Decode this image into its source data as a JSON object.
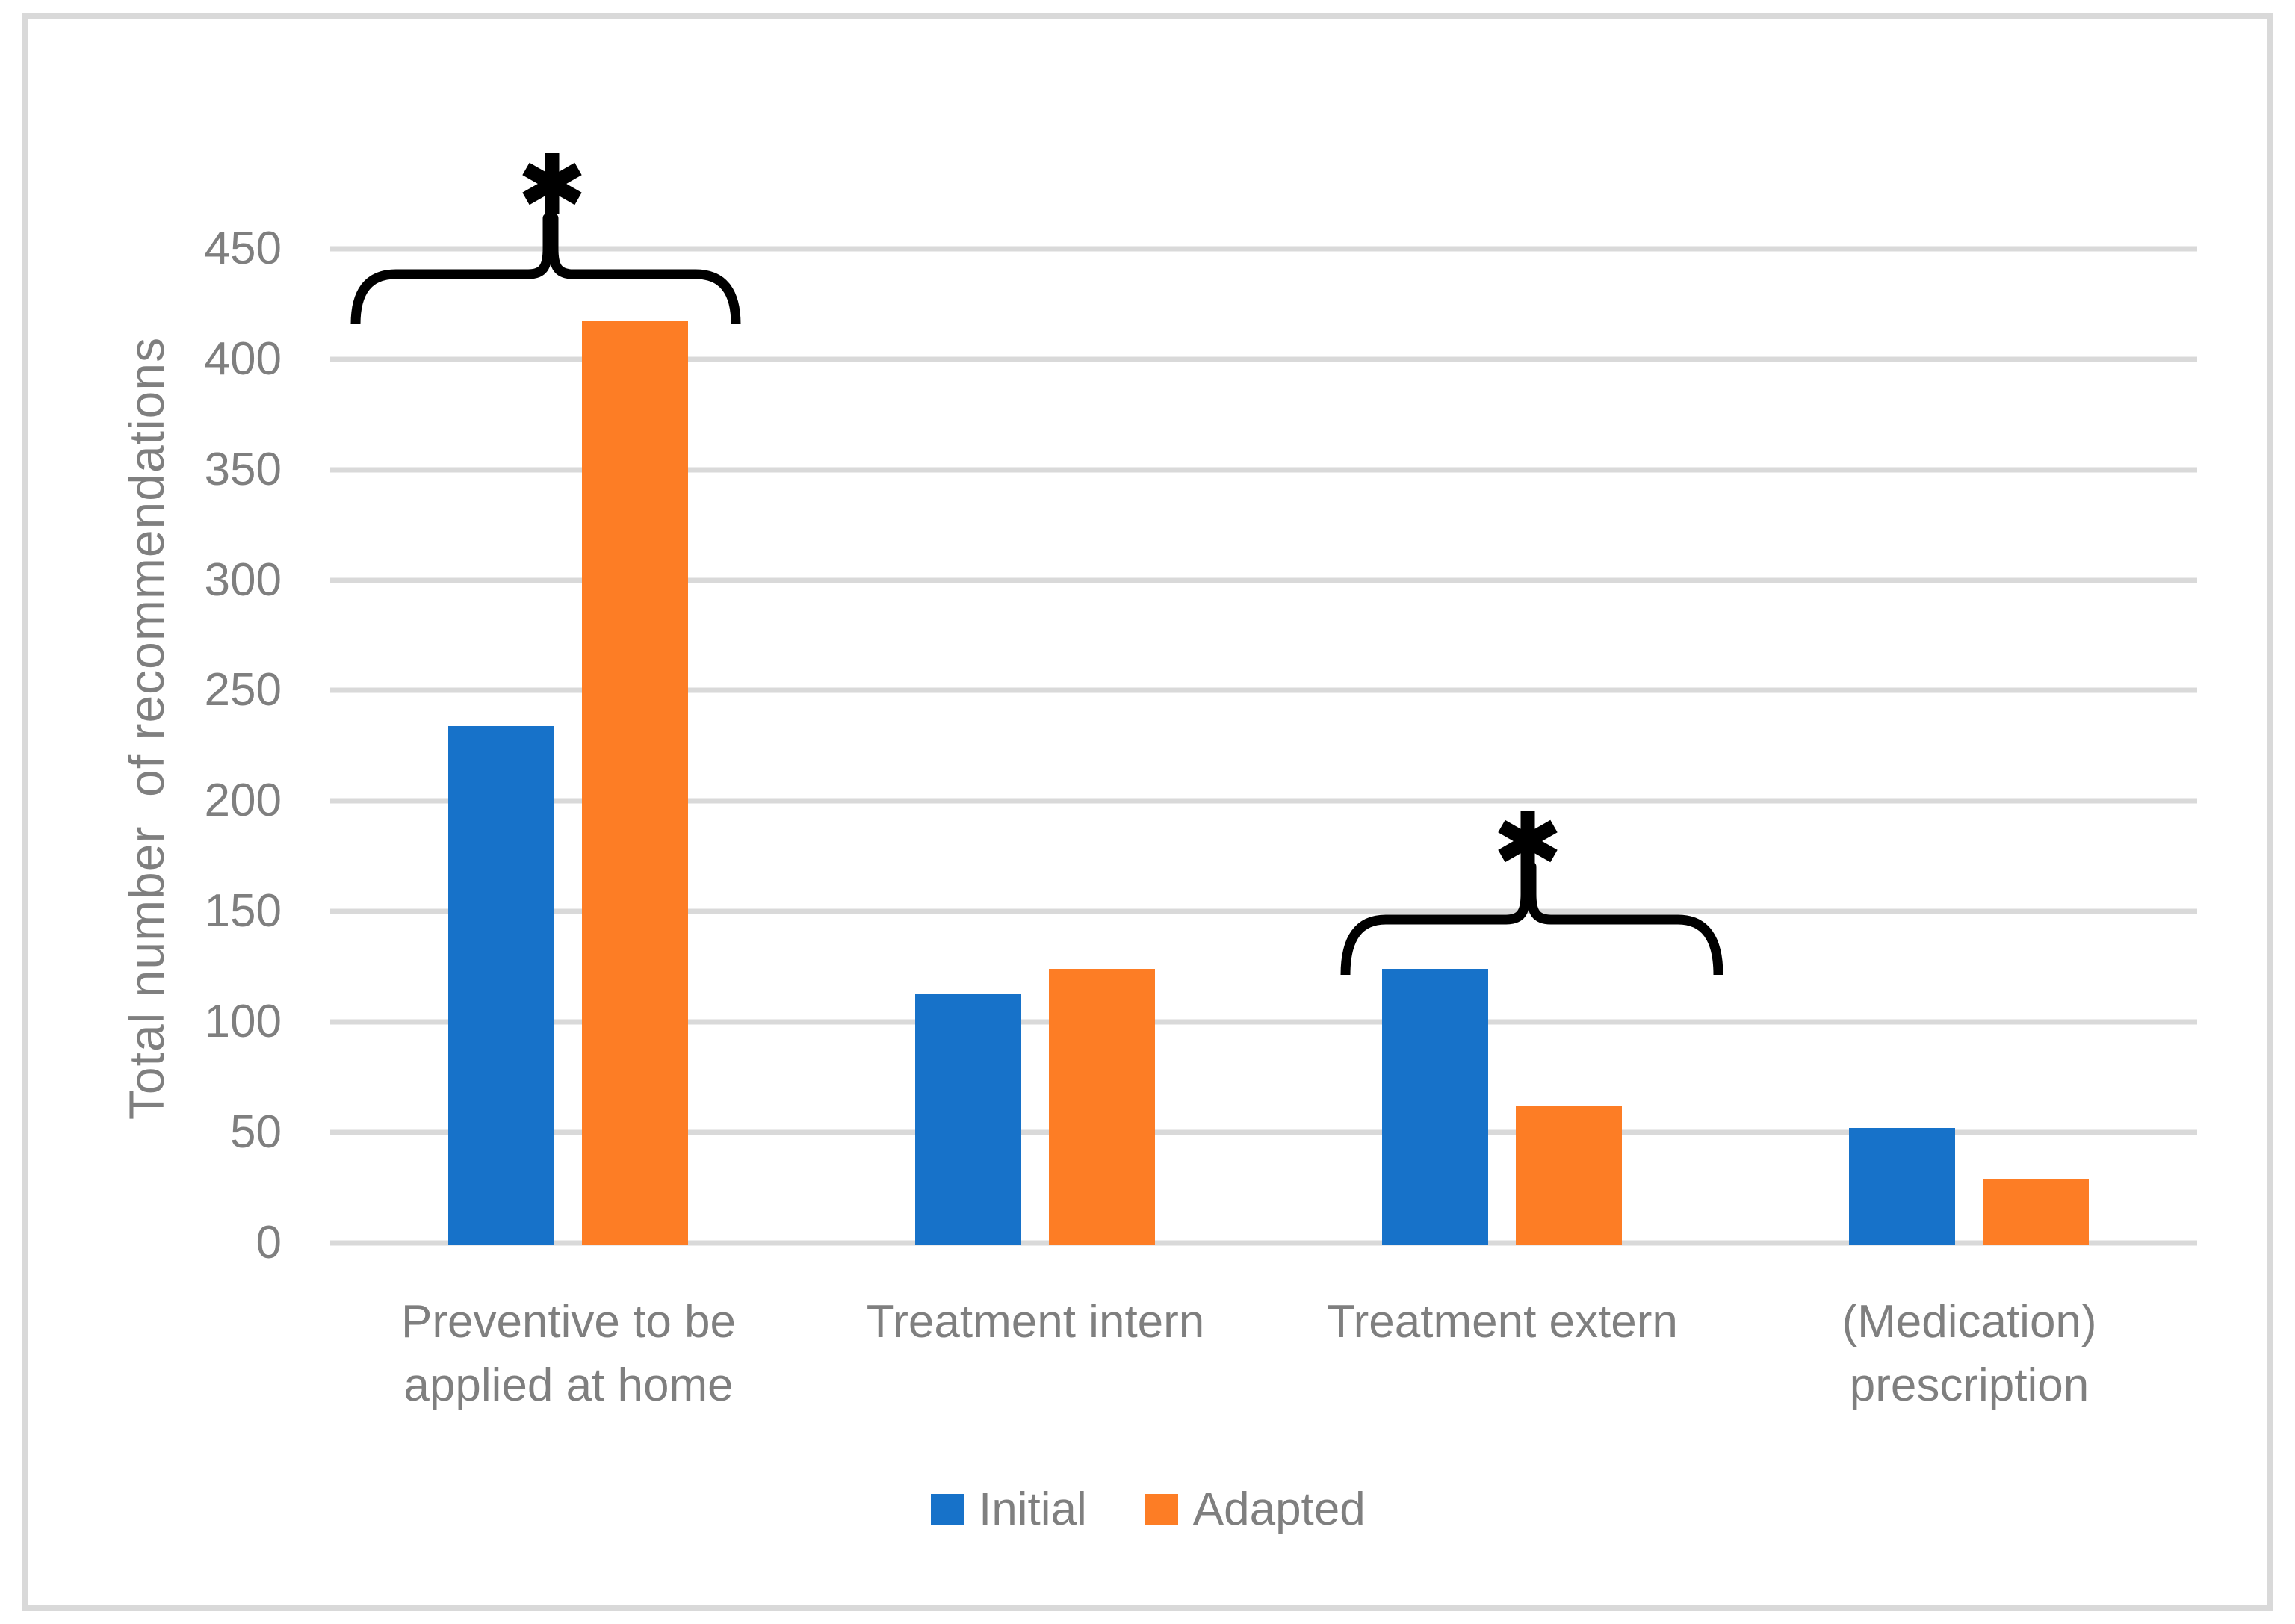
{
  "figure": {
    "background": "#FFFFFF",
    "border_color": "#D9D9D9"
  },
  "chart_data": {
    "type": "bar",
    "title": "",
    "categories": [
      "Preventive to be applied at home",
      "Treatment intern",
      "Treatment extern",
      "(Medication) prescription"
    ],
    "category_label_lines": [
      [
        "Preventive to be",
        "applied at home"
      ],
      [
        "Treatment intern"
      ],
      [
        "Treatment extern"
      ],
      [
        "(Medication)",
        "prescription"
      ]
    ],
    "series": [
      {
        "name": "Initial",
        "color": "#1772C9",
        "values": [
          234,
          113,
          124,
          52
        ]
      },
      {
        "name": "Adapted",
        "color": "#FD7D25",
        "values": [
          417,
          124,
          62,
          29
        ]
      }
    ],
    "xlabel": "",
    "ylabel": "Total number  of recommendations",
    "ylim": [
      0,
      450
    ],
    "yticks": [
      0,
      50,
      100,
      150,
      200,
      250,
      300,
      350,
      400,
      450
    ],
    "grid": "horizontal",
    "gridline_color": "#D9D9D9",
    "axis_text_color": "#7F7F7F",
    "legend_position": "bottom",
    "annotation_color": "#000000",
    "annotations": [
      {
        "symbol": "*",
        "category": "Preventive to be applied at home",
        "type": "significance-brace"
      },
      {
        "symbol": "*",
        "category": "Treatment extern",
        "type": "significance-brace"
      }
    ]
  }
}
